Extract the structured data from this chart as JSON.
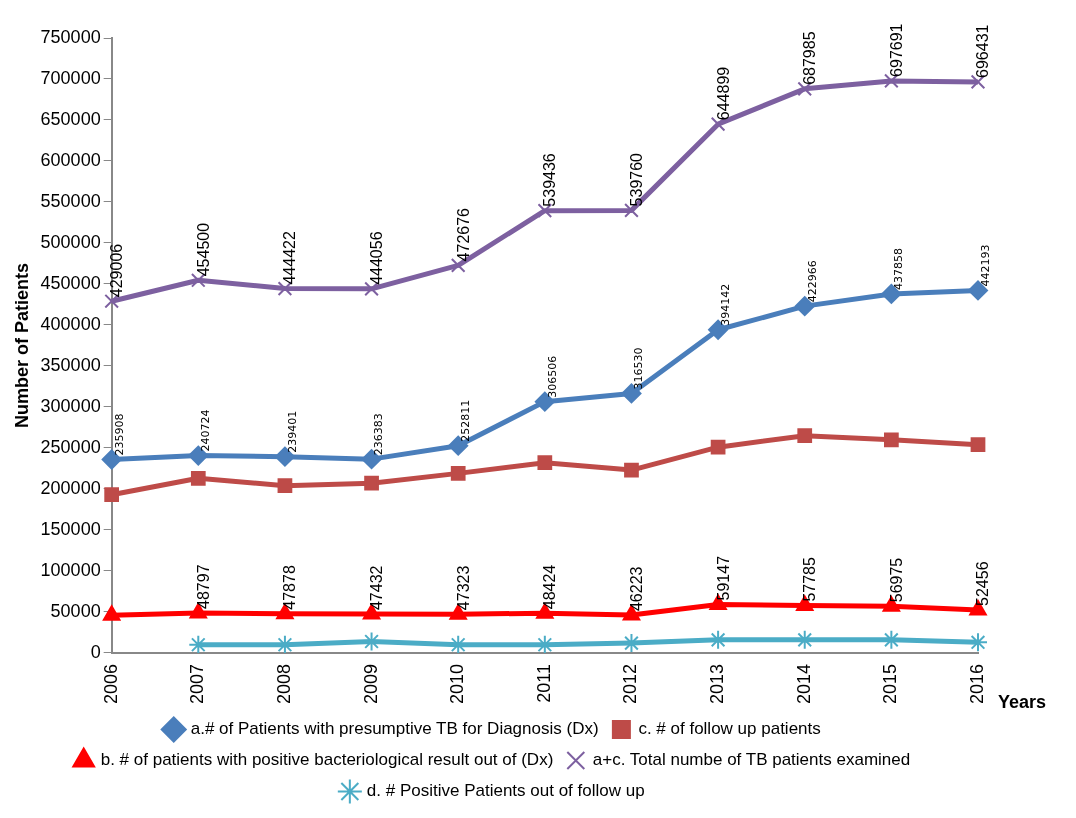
{
  "chart_data": {
    "type": "line",
    "xlabel": "Years",
    "ylabel": "Number of Patients",
    "categories": [
      "2006",
      "2007",
      "2008",
      "2009",
      "2010",
      "2011",
      "2012",
      "2013",
      "2014",
      "2015",
      "2016"
    ],
    "ylim": [
      0,
      750000
    ],
    "yticks": [
      0,
      50000,
      100000,
      150000,
      200000,
      250000,
      300000,
      350000,
      400000,
      450000,
      500000,
      550000,
      600000,
      650000,
      700000,
      750000
    ],
    "grid": false,
    "legend": "bottom",
    "series": [
      {
        "name": "a.# of Patients with presumptive TB for Diagnosis (Dx)",
        "color": "#4a7ebb",
        "marker": "diamond",
        "values": [
          235908,
          240724,
          239401,
          236383,
          252811,
          306506,
          316530,
          394142,
          422966,
          437858,
          442193
        ],
        "value_labels": [
          "235908",
          "240724",
          "239401",
          "236383",
          "252811",
          "306506",
          "316530",
          "394142",
          "422966",
          "437858",
          "442193"
        ]
      },
      {
        "name": "c. # of follow up patients",
        "color": "#be4b48",
        "marker": "square",
        "values": [
          193000,
          213000,
          204000,
          207000,
          219000,
          232000,
          223000,
          251000,
          265000,
          260000,
          254000
        ]
      },
      {
        "name": "b. # of patients with positive bacteriological result out of (Dx)",
        "color": "#ff0000",
        "marker": "triangle",
        "values": [
          46000,
          48797,
          47878,
          47432,
          47323,
          48424,
          46223,
          59147,
          57785,
          56975,
          52456
        ],
        "value_labels": [
          null,
          "48797",
          "47878",
          "47432",
          "47323",
          "48424",
          "46223",
          "59147",
          "57785",
          "56975",
          "52456"
        ]
      },
      {
        "name": "a+c. Total numbe of TB patients examined",
        "color": "#7d60a0",
        "marker": "cross",
        "values": [
          429006,
          454500,
          444422,
          444056,
          472676,
          539436,
          539760,
          644899,
          687985,
          697691,
          696431
        ],
        "value_labels": [
          "429006",
          "454500",
          "444422",
          "444056",
          "472676",
          "539436",
          "539760",
          "644899",
          "687985",
          "697691",
          "696431"
        ]
      },
      {
        "name": "d. # Positive Patients out of follow up",
        "color": "#4bacc6",
        "marker": "cross",
        "values": [
          null,
          10000,
          10000,
          14000,
          10000,
          10000,
          12000,
          16000,
          16000,
          16000,
          13000
        ]
      }
    ]
  }
}
